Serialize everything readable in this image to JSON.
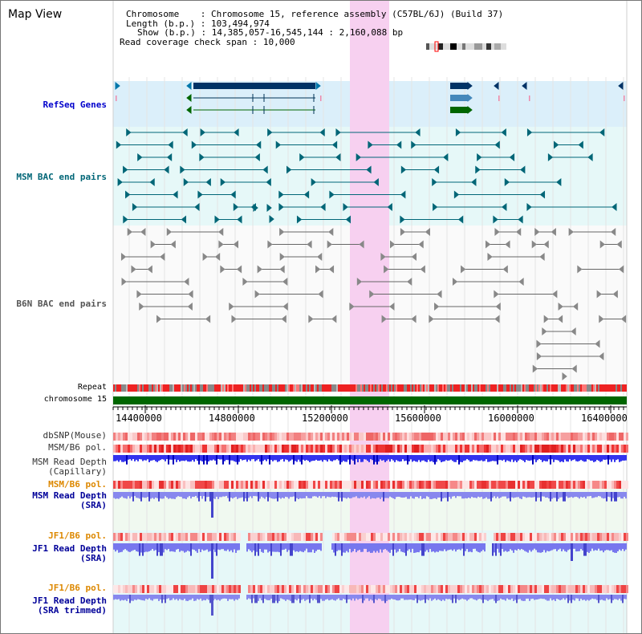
{
  "view": {
    "title": "Map View",
    "info": {
      "chromosome_key": "Chromosome",
      "chromosome_val": "Chromosome 15, reference assembly (C57BL/6J) (Build 37)",
      "length_key": "Length (b.p.)",
      "length_val": "103,494,974",
      "show_key": "Show (b.p.)",
      "show_val": "14,385,057-16,545,144 : 2,160,088 bp",
      "span_key": "Read coverage check span",
      "span_val": "10,000"
    }
  },
  "tracks": {
    "refseq": "RefSeq Genes",
    "msm_bac": "MSM BAC end pairs",
    "b6n_bac": "B6N BAC end pairs",
    "repeat": "Repeat",
    "chromosome": "chromosome 15",
    "dbsnp": "dbSNP(Mouse)",
    "msm_pol1": "MSM/B6 pol.",
    "msm_depth_cap_1": "MSM Read Depth",
    "msm_depth_cap_2": "(Capillary)",
    "msm_pol2": "MSM/B6 pol.",
    "msm_depth_sra_1": "MSM Read Depth",
    "msm_depth_sra_2": "(SRA)",
    "jf1_pol1": "JF1/B6 pol.",
    "jf1_depth_sra_1": "JF1 Read Depth",
    "jf1_depth_sra_2": "(SRA)",
    "jf1_pol2": "JF1/B6 pol.",
    "jf1_depth_trim_1": "JF1 Read Depth",
    "jf1_depth_trim_2": "(SRA trimmed)"
  },
  "axis": {
    "ticks": [
      "14400000",
      "14800000",
      "15200000",
      "15600000",
      "16000000",
      "16400000"
    ]
  },
  "colors": {
    "refseq_label": "#0000cc",
    "msm_label": "#006677",
    "gray_label": "#555555",
    "orange_label": "#dd8800",
    "blue_label": "#000099",
    "highlight": "#f7d0f0",
    "refseq_bg": "#dbeffa",
    "msm_bg": "#e6f8f8",
    "chromosome_bar": "#006600"
  }
}
